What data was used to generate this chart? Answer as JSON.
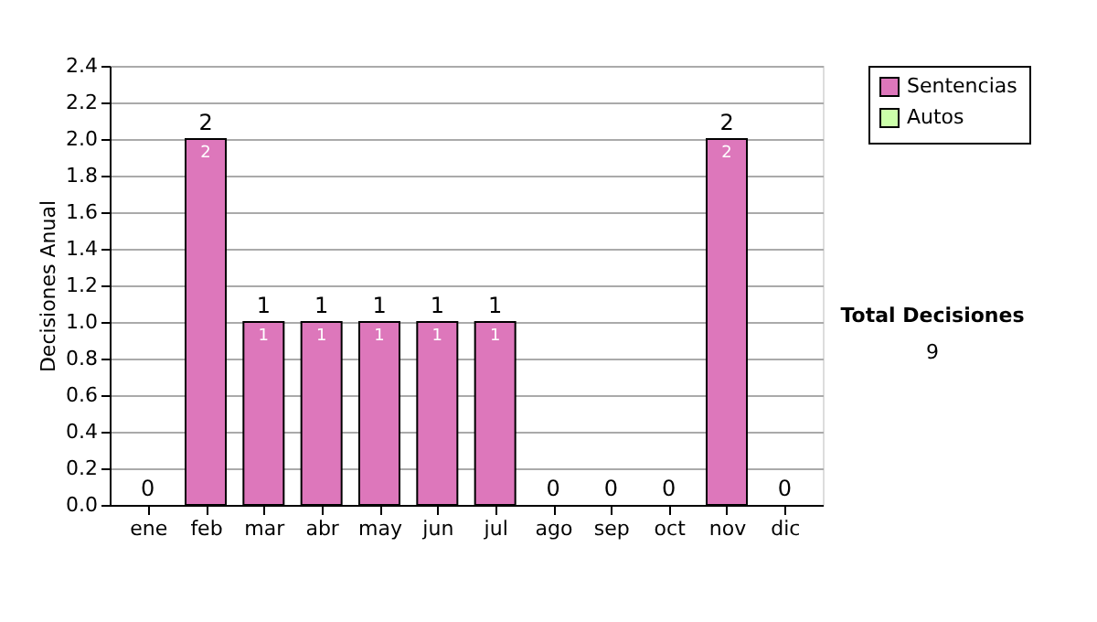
{
  "chart_data": {
    "type": "bar",
    "stacked": true,
    "ylabel": "Decisiones Anual",
    "categories": [
      "ene",
      "feb",
      "mar",
      "abr",
      "may",
      "jun",
      "jul",
      "ago",
      "sep",
      "oct",
      "nov",
      "dic"
    ],
    "series": [
      {
        "name": "Sentencias",
        "color": "#dd77bb",
        "values": [
          0,
          2,
          1,
          1,
          1,
          1,
          1,
          0,
          0,
          0,
          2,
          0
        ],
        "value_labels": [
          null,
          "2",
          "1",
          "1",
          "1",
          "1",
          "1",
          null,
          null,
          null,
          "2",
          null
        ]
      },
      {
        "name": "Autos",
        "color": "#ccffaa",
        "values": [
          0,
          0,
          0,
          0,
          0,
          0,
          0,
          0,
          0,
          0,
          0,
          0
        ]
      }
    ],
    "totals": [
      "0",
      "2",
      "1",
      "1",
      "1",
      "1",
      "1",
      "0",
      "0",
      "0",
      "2",
      "0"
    ],
    "ylim": [
      0,
      2.4
    ],
    "yticks": [
      {
        "value": 0,
        "label": "0.0"
      },
      0.2,
      0.4,
      0.6,
      0.8,
      {
        "value": 1,
        "label": "1.0"
      },
      1.2,
      1.4,
      1.6,
      1.8,
      {
        "value": 2,
        "label": "2.0"
      },
      2.2,
      2.4
    ],
    "grid": "y",
    "legend": "right",
    "annotations": [
      "Total Decisiones",
      "9"
    ]
  }
}
